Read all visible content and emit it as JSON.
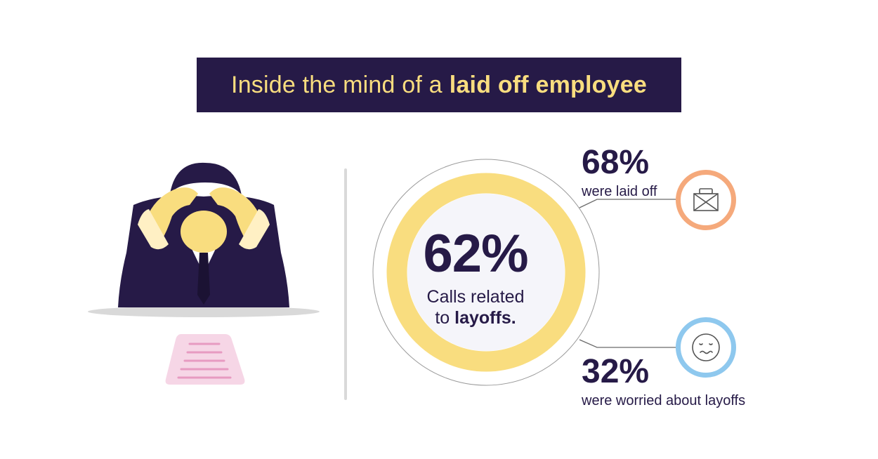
{
  "banner": {
    "title_prefix": "Inside the mind of a",
    "title_emphasis": "laid off employee"
  },
  "center_stat": {
    "value": "62%",
    "caption_line1": "Calls related",
    "caption_line2_prefix": "to",
    "caption_line2_emphasis": "layoffs."
  },
  "stats": [
    {
      "value": "68%",
      "label": "were laid off",
      "icon": "briefcase-x-icon"
    },
    {
      "value": "32%",
      "label": "were worried about layoffs",
      "icon": "worried-face-icon"
    }
  ],
  "colors": {
    "navy": "#261a47",
    "yellow": "#f9dd7f",
    "orange": "#f5a97b",
    "blue": "#8ec8ee",
    "pink": "#f6d6e6"
  }
}
